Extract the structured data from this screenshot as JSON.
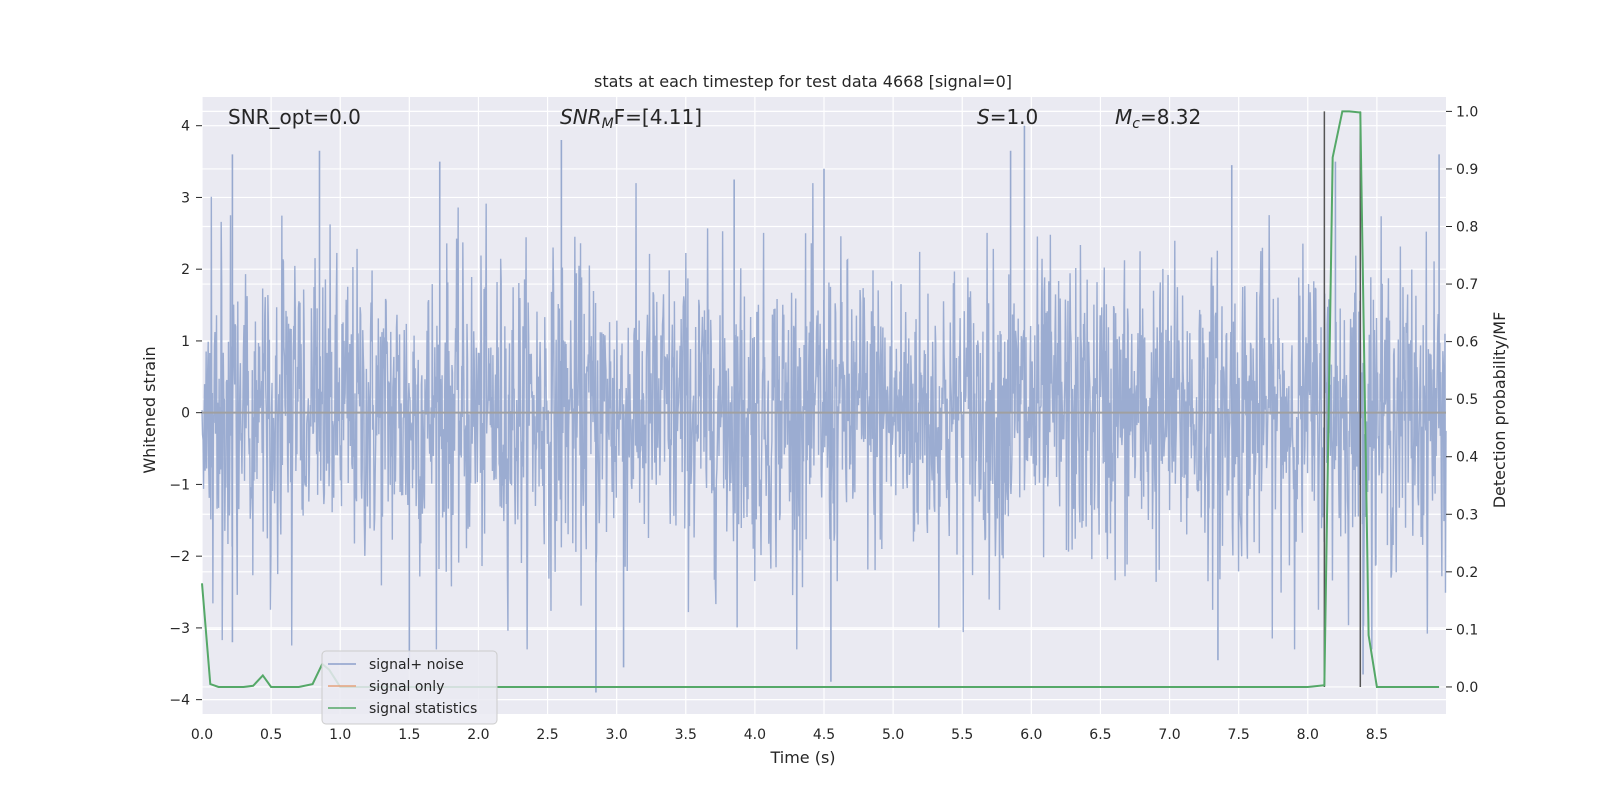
{
  "chart_data": {
    "type": "line",
    "title": "stats at each timestep for test data 4668 [signal=0]",
    "xlabel": "Time (s)",
    "ylabel_left": "Whitened strain",
    "ylabel_right": "Detection probability/MF",
    "xlim": [
      0.0,
      9.0
    ],
    "ylim_left": [
      -4.2,
      4.4
    ],
    "ylim_right": [
      -0.047,
      1.025
    ],
    "x_ticks": [
      "0.0",
      "0.5",
      "1.0",
      "1.5",
      "2.0",
      "2.5",
      "3.0",
      "3.5",
      "4.0",
      "4.5",
      "5.0",
      "5.5",
      "6.0",
      "6.5",
      "7.0",
      "7.5",
      "8.0",
      "8.5"
    ],
    "y_ticks_left": [
      "−4",
      "−3",
      "−2",
      "−1",
      "0",
      "1",
      "2",
      "3",
      "4"
    ],
    "y_ticks_right": [
      "0.0",
      "0.1",
      "0.2",
      "0.3",
      "0.4",
      "0.5",
      "0.6",
      "0.7",
      "0.8",
      "0.9",
      "1.0"
    ],
    "grid": true,
    "annotations": {
      "snr_opt": "SNR_opt=0.0",
      "snr_mf_sym": "SNR",
      "snr_mf_sub": "M",
      "snr_mf_rest": "F=[4.11]",
      "s_sym": "S",
      "s_rest": "=1.0",
      "mc_sym": "M",
      "mc_sub": "c",
      "mc_rest": "=8.32"
    },
    "legend": {
      "position": "lower-left",
      "entries": [
        {
          "label": "signal+ noise",
          "color": "#8da0cb"
        },
        {
          "label": "signal only",
          "color": "#e5a27c"
        },
        {
          "label": "signal statistics",
          "color": "#55a868"
        }
      ]
    },
    "series": [
      {
        "name": "signal+ noise",
        "axis": "left",
        "color": "#97a9cf",
        "description_kind": "whitened noise trace, samples between about -4 and 4 across 0-9 s",
        "envelope_peaks": [
          {
            "x": 0.22,
            "y": 3.6
          },
          {
            "x": 0.85,
            "y": 3.65
          },
          {
            "x": 1.72,
            "y": 3.5
          },
          {
            "x": 2.6,
            "y": 3.8
          },
          {
            "x": 3.85,
            "y": 3.25
          },
          {
            "x": 4.5,
            "y": 3.4
          },
          {
            "x": 5.85,
            "y": 3.65
          },
          {
            "x": 5.95,
            "y": 4.0
          },
          {
            "x": 7.45,
            "y": 3.45
          },
          {
            "x": 8.2,
            "y": 3.5
          },
          {
            "x": 8.95,
            "y": 3.6
          }
        ],
        "envelope_troughs": [
          {
            "x": 0.22,
            "y": -3.2
          },
          {
            "x": 1.5,
            "y": -3.45
          },
          {
            "x": 2.85,
            "y": -3.9
          },
          {
            "x": 3.05,
            "y": -3.55
          },
          {
            "x": 4.55,
            "y": -3.75
          },
          {
            "x": 7.35,
            "y": -3.45
          },
          {
            "x": 8.4,
            "y": -3.65
          }
        ]
      },
      {
        "name": "signal only",
        "axis": "left",
        "color": "#e5a27c",
        "x": [
          0.0,
          9.0
        ],
        "y": [
          0.0,
          0.0
        ]
      },
      {
        "name": "signal statistics",
        "axis": "right",
        "color": "#55a868",
        "x": [
          0.0,
          0.06,
          0.12,
          0.2,
          0.3,
          0.37,
          0.44,
          0.5,
          0.6,
          0.7,
          0.8,
          0.87,
          0.92,
          1.0,
          1.5,
          2.0,
          3.0,
          4.0,
          5.0,
          6.0,
          7.0,
          7.5,
          8.0,
          8.12,
          8.18,
          8.25,
          8.3,
          8.38,
          8.44,
          8.5,
          8.6,
          8.95
        ],
        "y": [
          0.18,
          0.005,
          0.0,
          0.0,
          0.0,
          0.002,
          0.02,
          0.0,
          0.0,
          0.0,
          0.005,
          0.04,
          0.03,
          0.0,
          0.0,
          0.0,
          0.0,
          0.0,
          0.0,
          0.0,
          0.0,
          0.0,
          0.0,
          0.003,
          0.92,
          1.0,
          1.0,
          0.998,
          0.09,
          0.0,
          0.0,
          0.0
        ]
      }
    ],
    "vertical_markers": [
      8.12,
      8.38
    ]
  }
}
